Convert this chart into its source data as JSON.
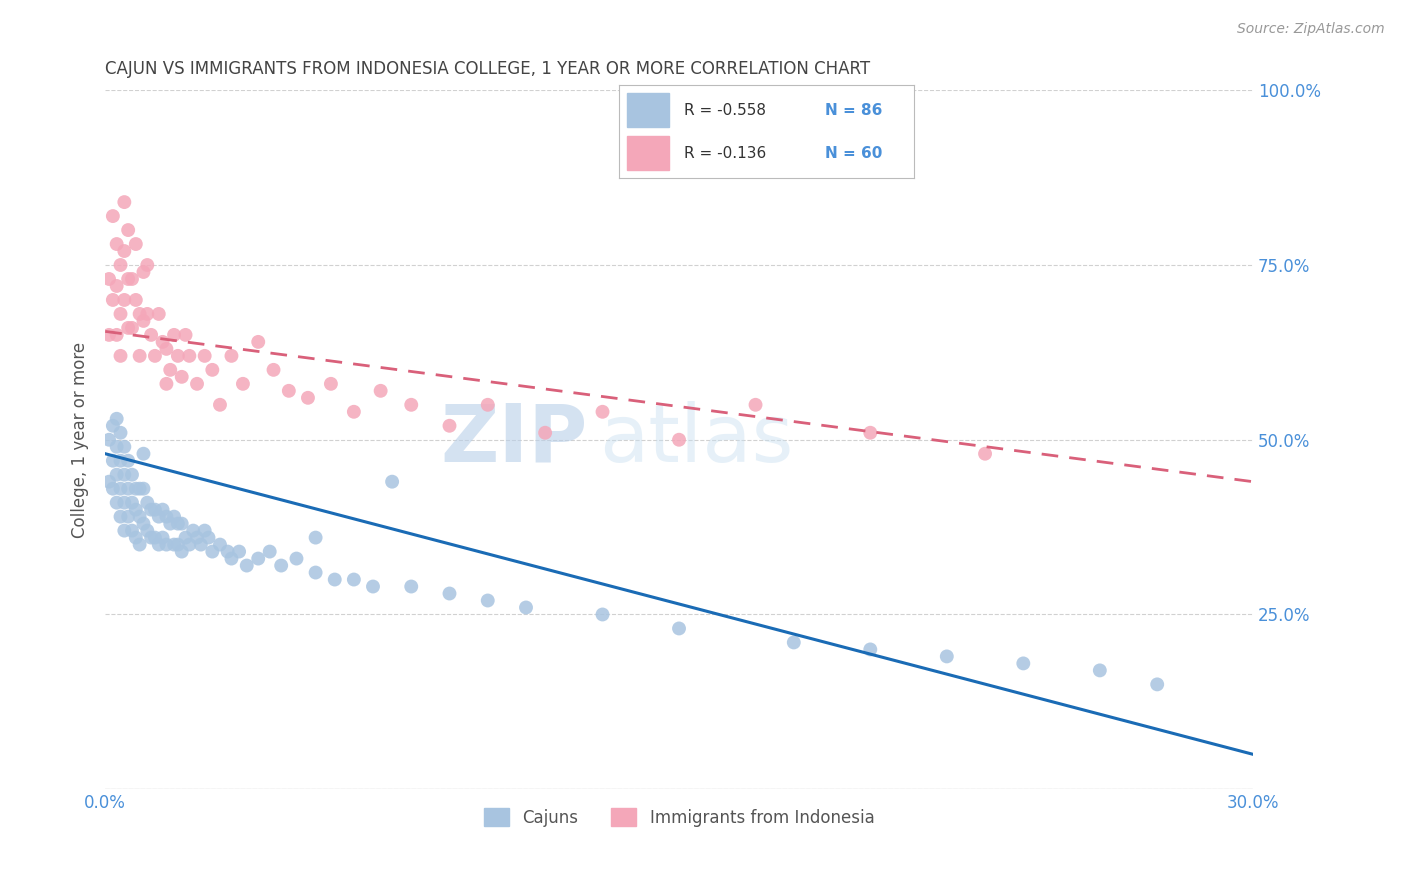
{
  "title": "CAJUN VS IMMIGRANTS FROM INDONESIA COLLEGE, 1 YEAR OR MORE CORRELATION CHART",
  "source": "Source: ZipAtlas.com",
  "ylabel": "College, 1 year or more",
  "xmin": 0.0,
  "xmax": 0.3,
  "ymin": 0.0,
  "ymax": 1.0,
  "cajun_R": -0.558,
  "cajun_N": 86,
  "indonesia_R": -0.136,
  "indonesia_N": 60,
  "cajun_color": "#a8c4e0",
  "indonesia_color": "#f4a7b9",
  "cajun_line_color": "#1a6bb5",
  "indonesia_line_color": "#d9607a",
  "watermark_zip": "ZIP",
  "watermark_atlas": "atlas",
  "background_color": "#ffffff",
  "grid_color": "#cccccc",
  "title_color": "#444444",
  "axis_label_color": "#555555",
  "right_axis_color": "#4a90d9",
  "bottom_axis_color": "#4a90d9",
  "cajun_line_x0": 0.0,
  "cajun_line_y0": 0.48,
  "cajun_line_x1": 0.3,
  "cajun_line_y1": 0.05,
  "indonesia_line_x0": 0.0,
  "indonesia_line_y0": 0.655,
  "indonesia_line_x1": 0.3,
  "indonesia_line_y1": 0.44,
  "cajun_x": [
    0.001,
    0.001,
    0.002,
    0.002,
    0.002,
    0.003,
    0.003,
    0.003,
    0.003,
    0.004,
    0.004,
    0.004,
    0.004,
    0.005,
    0.005,
    0.005,
    0.005,
    0.006,
    0.006,
    0.006,
    0.007,
    0.007,
    0.007,
    0.008,
    0.008,
    0.008,
    0.009,
    0.009,
    0.009,
    0.01,
    0.01,
    0.01,
    0.011,
    0.011,
    0.012,
    0.012,
    0.013,
    0.013,
    0.014,
    0.014,
    0.015,
    0.015,
    0.016,
    0.016,
    0.017,
    0.018,
    0.018,
    0.019,
    0.019,
    0.02,
    0.02,
    0.021,
    0.022,
    0.023,
    0.024,
    0.025,
    0.026,
    0.027,
    0.028,
    0.03,
    0.032,
    0.033,
    0.035,
    0.037,
    0.04,
    0.043,
    0.046,
    0.05,
    0.055,
    0.06,
    0.065,
    0.07,
    0.08,
    0.09,
    0.1,
    0.11,
    0.13,
    0.15,
    0.18,
    0.2,
    0.22,
    0.24,
    0.26,
    0.275,
    0.055,
    0.075
  ],
  "cajun_y": [
    0.5,
    0.44,
    0.52,
    0.47,
    0.43,
    0.53,
    0.49,
    0.45,
    0.41,
    0.51,
    0.47,
    0.43,
    0.39,
    0.49,
    0.45,
    0.41,
    0.37,
    0.47,
    0.43,
    0.39,
    0.45,
    0.41,
    0.37,
    0.43,
    0.4,
    0.36,
    0.43,
    0.39,
    0.35,
    0.48,
    0.43,
    0.38,
    0.41,
    0.37,
    0.4,
    0.36,
    0.4,
    0.36,
    0.39,
    0.35,
    0.4,
    0.36,
    0.39,
    0.35,
    0.38,
    0.39,
    0.35,
    0.38,
    0.35,
    0.38,
    0.34,
    0.36,
    0.35,
    0.37,
    0.36,
    0.35,
    0.37,
    0.36,
    0.34,
    0.35,
    0.34,
    0.33,
    0.34,
    0.32,
    0.33,
    0.34,
    0.32,
    0.33,
    0.31,
    0.3,
    0.3,
    0.29,
    0.29,
    0.28,
    0.27,
    0.26,
    0.25,
    0.23,
    0.21,
    0.2,
    0.19,
    0.18,
    0.17,
    0.15,
    0.36,
    0.44
  ],
  "indonesia_x": [
    0.001,
    0.001,
    0.002,
    0.002,
    0.003,
    0.003,
    0.003,
    0.004,
    0.004,
    0.004,
    0.005,
    0.005,
    0.005,
    0.006,
    0.006,
    0.006,
    0.007,
    0.007,
    0.008,
    0.008,
    0.009,
    0.009,
    0.01,
    0.01,
    0.011,
    0.011,
    0.012,
    0.013,
    0.014,
    0.015,
    0.016,
    0.016,
    0.017,
    0.018,
    0.019,
    0.02,
    0.021,
    0.022,
    0.024,
    0.026,
    0.028,
    0.03,
    0.033,
    0.036,
    0.04,
    0.044,
    0.048,
    0.053,
    0.059,
    0.065,
    0.072,
    0.08,
    0.09,
    0.1,
    0.115,
    0.13,
    0.15,
    0.17,
    0.2,
    0.23
  ],
  "indonesia_y": [
    0.73,
    0.65,
    0.82,
    0.7,
    0.78,
    0.72,
    0.65,
    0.75,
    0.68,
    0.62,
    0.84,
    0.77,
    0.7,
    0.8,
    0.73,
    0.66,
    0.73,
    0.66,
    0.78,
    0.7,
    0.68,
    0.62,
    0.74,
    0.67,
    0.75,
    0.68,
    0.65,
    0.62,
    0.68,
    0.64,
    0.58,
    0.63,
    0.6,
    0.65,
    0.62,
    0.59,
    0.65,
    0.62,
    0.58,
    0.62,
    0.6,
    0.55,
    0.62,
    0.58,
    0.64,
    0.6,
    0.57,
    0.56,
    0.58,
    0.54,
    0.57,
    0.55,
    0.52,
    0.55,
    0.51,
    0.54,
    0.5,
    0.55,
    0.51,
    0.48
  ]
}
